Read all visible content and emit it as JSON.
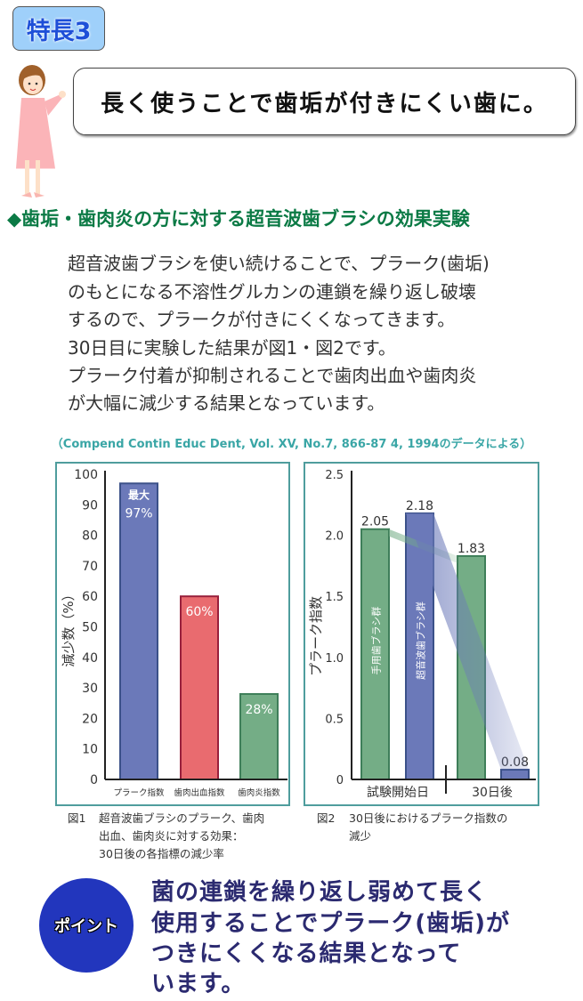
{
  "badge": "特長3",
  "title": "長く使うことで歯垢が付きにくい歯に。",
  "heading": "◆歯垢・歯肉炎の方に対する超音波歯ブラシの効果実験",
  "paragraph": [
    "超音波歯ブラシを使い続けることで、プラーク(歯垢)",
    "のもとになる不溶性グルカンの連鎖を繰り返し破壊",
    "するので、プラークが付きにくくなってきます。",
    "30日目に実験した結果が図1・図2です。",
    "プラーク付着が抑制されることで歯肉出血や歯肉炎",
    "が大幅に減少する結果となっています。"
  ],
  "citation": "（Compend Contin Educ Dent, Vol. XV, No.7, 866-87 4, 1994のデータによる）",
  "captions": {
    "fig1_num": "図1",
    "fig1": [
      "超音波歯ブラシのプラーク、歯肉",
      "出血、歯肉炎に対する効果：",
      "30日後の各指標の減少率"
    ],
    "fig2_num": "図2",
    "fig2": [
      "30日後におけるプラーク指数の",
      "減少"
    ]
  },
  "point": {
    "badge": "ポイント",
    "lines": [
      "菌の連鎖を繰り返し弱めて長く",
      "使用することでプラーク(歯垢)が",
      "つきにくくなる結果となって",
      "います。"
    ]
  },
  "chart_data": [
    {
      "type": "bar",
      "ylabel": "減少数（%）",
      "ylim": [
        0,
        100
      ],
      "yticks": [
        "0",
        "10",
        "20",
        "30",
        "40",
        "50",
        "60",
        "70",
        "80",
        "90",
        "100"
      ],
      "categories": [
        "プラーク指数",
        "歯肉出血指数",
        "歯肉炎指数"
      ],
      "values": [
        97,
        60,
        28
      ],
      "data_labels": [
        "97%",
        "60%",
        "28%"
      ],
      "annotation": "最大",
      "colors": [
        "#6b79b9",
        "#e96b6f",
        "#74ad86"
      ],
      "borders": [
        "#3b5189",
        "#98203c",
        "#3e7e59"
      ]
    },
    {
      "type": "bar",
      "ylabel": "プラーク指数",
      "ylim": [
        0,
        2.5
      ],
      "yticks": [
        "0",
        "0.5",
        "1.0",
        "1.5",
        "2.0",
        "2.5"
      ],
      "categories": [
        "試験開始日",
        "30日後"
      ],
      "series": [
        {
          "name": "手用歯ブラシ群",
          "values": [
            2.05,
            1.83
          ],
          "labels": [
            "2.05",
            "1.83"
          ],
          "color": "#74ad86"
        },
        {
          "name": "超音波歯ブラシ群",
          "values": [
            2.18,
            0.08
          ],
          "labels": [
            "2.18",
            "0.08"
          ],
          "color": "#6b79b9"
        }
      ]
    }
  ]
}
